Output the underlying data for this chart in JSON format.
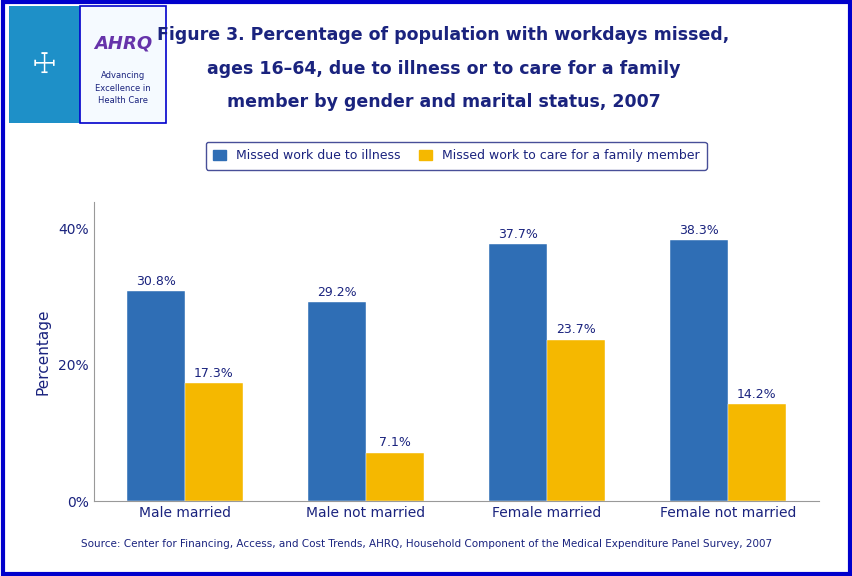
{
  "title_line1": "Figure 3. Percentage of population with workdays missed,",
  "title_line2": "ages 16–64, due to illness or to care for a family",
  "title_line3": "member by gender and marital status, 2007",
  "categories": [
    "Male married",
    "Male not married",
    "Female married",
    "Female not married"
  ],
  "series1_label": "Missed work due to illness",
  "series2_label": "Missed work to care for a family member",
  "series1_values": [
    30.8,
    29.2,
    37.7,
    38.3
  ],
  "series2_values": [
    17.3,
    7.1,
    23.7,
    14.2
  ],
  "series1_color": "#2f6eb5",
  "series2_color": "#f5b800",
  "ylabel": "Percentage",
  "yticks": [
    0,
    20,
    40
  ],
  "ytick_labels": [
    "0%",
    "20%",
    "40%"
  ],
  "ylim": [
    0,
    44
  ],
  "bar_width": 0.32,
  "source_text": "Source: Center for Financing, Access, and Cost Trends, AHRQ, Household Component of the Medical Expenditure Panel Survey, 2007",
  "title_color": "#1a237e",
  "axis_label_color": "#1a237e",
  "tick_label_color": "#1a237e",
  "bar_label_color": "#1a237e",
  "legend_border_color": "#1a237e",
  "outer_border_color": "#0000cc",
  "divider_color": "#0000cc",
  "logo_bg_color": "#f0f8ff",
  "hhs_bg_color": "#1e90c8",
  "bg_color": "#ffffff"
}
